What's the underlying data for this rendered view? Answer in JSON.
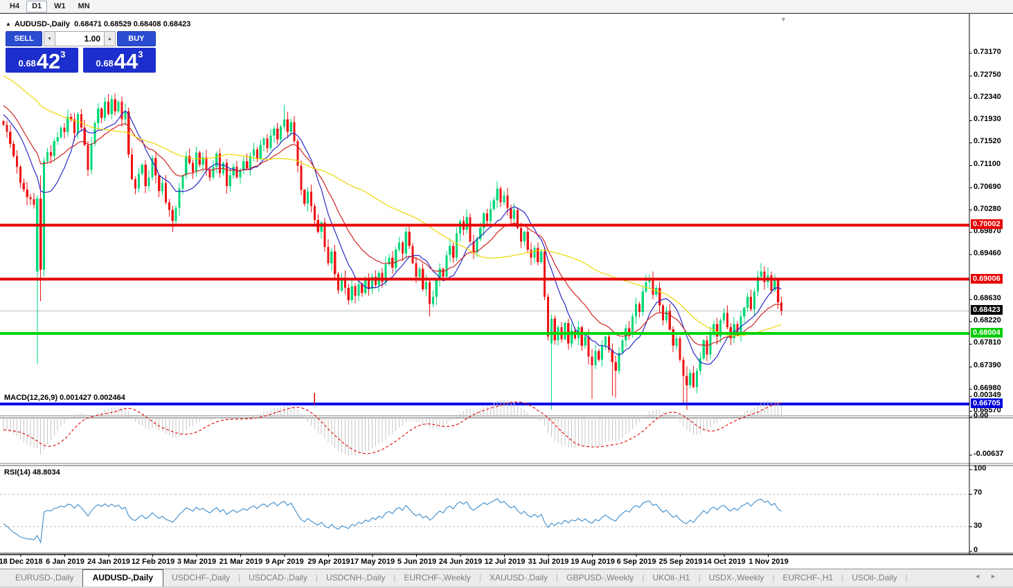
{
  "toolbar": {
    "timeframes": [
      {
        "label": "H4",
        "active": false
      },
      {
        "label": "D1",
        "active": true
      },
      {
        "label": "W1",
        "active": false
      },
      {
        "label": "MN",
        "active": false
      }
    ]
  },
  "chart": {
    "collapse_arrow": "▲",
    "title_symbol": "AUDUSD-,Daily",
    "title_quotes": "0.68471 0.68529 0.68408 0.68423",
    "shift_marker": "▼"
  },
  "trade_panel": {
    "sell_label": "SELL",
    "buy_label": "BUY",
    "volume": "1.00",
    "spinner_down": "▼",
    "spinner_up": "▲",
    "sell_price": {
      "base": "0.68",
      "big": "42",
      "sup": "3"
    },
    "buy_price": {
      "base": "0.68",
      "big": "44",
      "sup": "3"
    }
  },
  "price_axis": {
    "ticks": [
      "0.73170",
      "0.72750",
      "0.72340",
      "0.71930",
      "0.71520",
      "0.71100",
      "0.70690",
      "0.70280",
      "0.69870",
      "0.69460",
      "0.68630",
      "0.68220",
      "0.67810",
      "0.67390",
      "0.66980",
      "0.66570"
    ],
    "special": [
      {
        "text": "0.70002",
        "price": 0.70002,
        "bg": "#e60000",
        "fg": "#ffffff"
      },
      {
        "text": "0.69006",
        "price": 0.69006,
        "bg": "#e60000",
        "fg": "#ffffff"
      },
      {
        "text": "0.68423",
        "price": 0.68423,
        "bg": "#000000",
        "fg": "#ffffff"
      },
      {
        "text": "0.68004",
        "price": 0.68004,
        "bg": "#00cc00",
        "fg": "#ffffff"
      },
      {
        "text": "0.66705",
        "price": 0.66705,
        "bg": "#0000dd",
        "fg": "#ffffff"
      }
    ]
  },
  "indicators": {
    "macd": {
      "label": "MACD(12,26,9) 0.001427 0.002464",
      "axis": [
        "0.00349",
        "0.00",
        "-0.00637"
      ]
    },
    "rsi": {
      "label": "RSI(14) 48.8034",
      "axis": [
        "100",
        "70",
        "30",
        "0"
      ]
    }
  },
  "date_axis": {
    "labels": [
      "18 Dec 2018",
      "6 Jan 2019",
      "24 Jan 2019",
      "12 Feb 2019",
      "3 Mar 2019",
      "21 Mar 2019",
      "9 Apr 2019",
      "29 Apr 2019",
      "17 May 2019",
      "5 Jun 2019",
      "24 Jun 2019",
      "12 Jul 2019",
      "31 Jul 2019",
      "19 Aug 2019",
      "6 Sep 2019",
      "25 Sep 2019",
      "14 Oct 2019",
      "1 Nov 2019"
    ]
  },
  "tabs": [
    {
      "label": "EURUSD-,Daily",
      "active": false
    },
    {
      "label": "AUDUSD-,Daily",
      "active": true
    },
    {
      "label": "USDCHF-,Daily",
      "active": false
    },
    {
      "label": "USDCAD-,Daily",
      "active": false
    },
    {
      "label": "USDCNH-,Daily",
      "active": false
    },
    {
      "label": "EURCHF-,Weekly",
      "active": false
    },
    {
      "label": "XAUUSD-,Daily",
      "active": false
    },
    {
      "label": "GBPUSD-,Weekly",
      "active": false
    },
    {
      "label": "UKOil-,H1",
      "active": false
    },
    {
      "label": "USDX-,Weekly",
      "active": false
    },
    {
      "label": "EURCHF-,H1",
      "active": false
    },
    {
      "label": "USOil-,Daily",
      "active": false
    }
  ],
  "tab_scroll": {
    "left": "◄",
    "right": "►"
  },
  "chart_data": {
    "type": "candlestick",
    "symbol": "AUDUSD-",
    "timeframe": "Daily",
    "ohlc_display": {
      "open": 0.68471,
      "high": 0.68529,
      "low": 0.68408,
      "close": 0.68423
    },
    "price_axis_range": [
      0.6652,
      0.73336
    ],
    "colors": {
      "up": "#00d878",
      "down": "#ee1212",
      "wick_up": "#00c86e",
      "wick_down": "#ee1212"
    },
    "hlines": [
      {
        "price": 0.70002,
        "color": "#e60000",
        "width": 4
      },
      {
        "price": 0.69006,
        "color": "#e60000",
        "width": 4
      },
      {
        "price": 0.68423,
        "color": "#bcbcbc",
        "width": 1
      },
      {
        "price": 0.68004,
        "color": "#00d400",
        "width": 4
      },
      {
        "price": 0.66705,
        "color": "#0000e6",
        "width": 4
      }
    ],
    "moving_averages": [
      {
        "period": 10,
        "type": "sma",
        "color": "#2828c8"
      },
      {
        "period": 21,
        "type": "ema",
        "color": "#d02424"
      },
      {
        "period": 55,
        "type": "sma",
        "color": "#ecd800"
      }
    ],
    "macd": {
      "fast": 12,
      "slow": 26,
      "signal_period": 9,
      "value": 0.001427,
      "signal_value": 0.002464,
      "histogram_color": "#c6c6c6",
      "signal_color": "#e00000",
      "red_vline_bar": 92
    },
    "rsi": {
      "period": 14,
      "value": 48.8034,
      "color": "#3c8ccc",
      "levels": [
        70,
        30
      ]
    },
    "candles": {
      "first_open": 0.7192,
      "closes": [
        0.7185,
        0.7172,
        0.715,
        0.7128,
        0.7108,
        0.7078,
        0.7066,
        0.7052,
        0.7048,
        0.7038,
        0.7049,
        0.6918,
        0.7118,
        0.7135,
        0.7128,
        0.7155,
        0.7162,
        0.718,
        0.7172,
        0.72,
        0.7195,
        0.717,
        0.7205,
        0.718,
        0.7148,
        0.7102,
        0.715,
        0.7188,
        0.7215,
        0.7198,
        0.7228,
        0.7205,
        0.7232,
        0.721,
        0.7228,
        0.7195,
        0.721,
        0.713,
        0.7085,
        0.7068,
        0.7095,
        0.7112,
        0.7072,
        0.7088,
        0.7124,
        0.7092,
        0.7063,
        0.7078,
        0.7042,
        0.7028,
        0.7008,
        0.7032,
        0.7068,
        0.7092,
        0.7128,
        0.7115,
        0.7098,
        0.7134,
        0.7112,
        0.7125,
        0.7102,
        0.7088,
        0.7108,
        0.7132,
        0.7096,
        0.7115,
        0.7072,
        0.7092,
        0.7108,
        0.7088,
        0.7102,
        0.7118,
        0.7105,
        0.7128,
        0.714,
        0.7122,
        0.7148,
        0.716,
        0.7142,
        0.7165,
        0.7178,
        0.7158,
        0.7182,
        0.7195,
        0.7172,
        0.719,
        0.7155,
        0.711,
        0.7065,
        0.704,
        0.7062,
        0.7035,
        0.701,
        0.6988,
        0.7005,
        0.696,
        0.693,
        0.6952,
        0.691,
        0.688,
        0.6902,
        0.6885,
        0.6862,
        0.6888,
        0.687,
        0.6892,
        0.6875,
        0.6898,
        0.6882,
        0.6905,
        0.689,
        0.6912,
        0.6895,
        0.6928,
        0.694,
        0.6922,
        0.6955,
        0.6968,
        0.6948,
        0.6988,
        0.6962,
        0.693,
        0.6905,
        0.692,
        0.6882,
        0.6895,
        0.6855,
        0.6868,
        0.6898,
        0.692,
        0.6905,
        0.6945,
        0.6962,
        0.694,
        0.6985,
        0.7008,
        0.6992,
        0.7015,
        0.697,
        0.695,
        0.6975,
        0.6995,
        0.7022,
        0.7008,
        0.703,
        0.7046,
        0.7068,
        0.7042,
        0.7055,
        0.7032,
        0.7012,
        0.7028,
        0.6995,
        0.697,
        0.6988,
        0.6955,
        0.694,
        0.6958,
        0.6932,
        0.6952,
        0.6868,
        0.6795,
        0.6828,
        0.6788,
        0.6812,
        0.679,
        0.682,
        0.6782,
        0.6806,
        0.6792,
        0.6812,
        0.6778,
        0.6795,
        0.6758,
        0.6742,
        0.6768,
        0.6752,
        0.6778,
        0.6795,
        0.677,
        0.6748,
        0.6732,
        0.6765,
        0.6788,
        0.681,
        0.6798,
        0.6832,
        0.6855,
        0.684,
        0.6878,
        0.6895,
        0.6902,
        0.6872,
        0.6885,
        0.6852,
        0.6825,
        0.6842,
        0.6808,
        0.6778,
        0.6792,
        0.6752,
        0.6722,
        0.6705,
        0.6728,
        0.6702,
        0.6732,
        0.6755,
        0.6788,
        0.6762,
        0.68,
        0.6818,
        0.6795,
        0.6825,
        0.6838,
        0.6812,
        0.6792,
        0.6818,
        0.68,
        0.6832,
        0.6848,
        0.6868,
        0.6845,
        0.6878,
        0.6905,
        0.6915,
        0.6895,
        0.6908,
        0.688,
        0.6898,
        0.6858,
        0.6842
      ],
      "special_bars": {
        "10": [
          0.6915,
          0.7055,
          0.6744,
          0.7049
        ],
        "11": [
          0.7049,
          0.7092,
          0.686,
          0.6918
        ],
        "12": [
          0.6918,
          0.7125,
          0.6906,
          0.7118
        ],
        "32": [
          0.7205,
          0.724,
          0.7196,
          0.7232
        ],
        "50": [
          0.7028,
          0.7036,
          0.6988,
          0.7008
        ],
        "83": [
          0.7182,
          0.7222,
          0.7176,
          0.7195
        ],
        "126": [
          0.6895,
          0.6902,
          0.6832,
          0.6855
        ],
        "146": [
          0.7046,
          0.7082,
          0.7032,
          0.7068
        ],
        "160": [
          0.6952,
          0.6958,
          0.6862,
          0.6868
        ],
        "161": [
          0.6868,
          0.6874,
          0.6788,
          0.6795
        ],
        "162": [
          0.6782,
          0.6836,
          0.666,
          0.6828
        ],
        "163": [
          0.6828,
          0.6834,
          0.678,
          0.6788
        ],
        "174": [
          0.6758,
          0.6772,
          0.668,
          0.6742
        ],
        "180": [
          0.677,
          0.6782,
          0.6685,
          0.6748
        ],
        "181": [
          0.6748,
          0.676,
          0.6682,
          0.6732
        ],
        "201": [
          0.6752,
          0.6758,
          0.6668,
          0.6722
        ],
        "202": [
          0.6722,
          0.674,
          0.666,
          0.6705
        ],
        "224": [
          0.6905,
          0.693,
          0.6898,
          0.6915
        ]
      }
    }
  }
}
